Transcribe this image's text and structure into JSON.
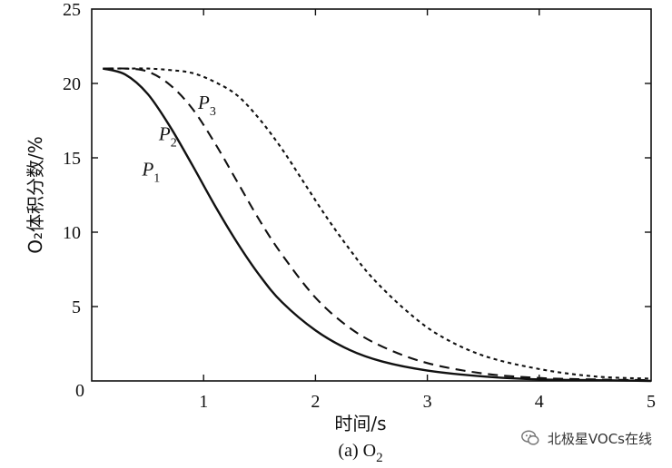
{
  "chart_data": {
    "type": "line",
    "xlabel": "时间/s",
    "ylabel": "O₂体积分数/%",
    "caption_prefix": "(a) O",
    "caption_sub": "2",
    "xlim": [
      0,
      5
    ],
    "ylim": [
      0,
      25
    ],
    "xticks": [
      "0",
      "1",
      "2",
      "3",
      "4",
      "5"
    ],
    "yticks": [
      "5",
      "10",
      "15",
      "20",
      "25"
    ],
    "series": [
      {
        "name": "P1",
        "label": "P",
        "sub": "1",
        "style": "solid",
        "x": [
          0.1,
          0.3,
          0.5,
          0.7,
          0.9,
          1.1,
          1.3,
          1.5,
          1.7,
          2.0,
          2.3,
          2.6,
          3.0,
          3.5,
          4.0,
          4.5,
          5.0
        ],
        "y": [
          21.0,
          20.6,
          19.3,
          17.1,
          14.5,
          11.8,
          9.3,
          7.1,
          5.3,
          3.4,
          2.1,
          1.3,
          0.7,
          0.3,
          0.1,
          0.05,
          0.0
        ]
      },
      {
        "name": "P2",
        "label": "P",
        "sub": "2",
        "style": "dashed",
        "x": [
          0.1,
          0.3,
          0.5,
          0.7,
          0.9,
          1.1,
          1.3,
          1.5,
          1.7,
          2.0,
          2.3,
          2.6,
          3.0,
          3.5,
          4.0,
          4.5,
          5.0
        ],
        "y": [
          21.0,
          21.0,
          20.8,
          19.9,
          18.3,
          16.0,
          13.4,
          10.8,
          8.5,
          5.6,
          3.6,
          2.3,
          1.2,
          0.5,
          0.2,
          0.1,
          0.05
        ]
      },
      {
        "name": "P3",
        "label": "P",
        "sub": "3",
        "style": "dotted",
        "x": [
          0.1,
          0.3,
          0.5,
          0.7,
          0.9,
          1.1,
          1.3,
          1.5,
          1.7,
          1.9,
          2.1,
          2.3,
          2.5,
          2.8,
          3.1,
          3.5,
          4.0,
          4.5,
          5.0
        ],
        "y": [
          21.0,
          21.0,
          21.0,
          20.9,
          20.7,
          20.1,
          19.2,
          17.6,
          15.6,
          13.3,
          11.0,
          8.9,
          7.0,
          4.8,
          3.1,
          1.7,
          0.8,
          0.3,
          0.15
        ]
      }
    ]
  },
  "watermark": {
    "text": "北极星VOCs在线",
    "icon": "wechat-icon"
  }
}
